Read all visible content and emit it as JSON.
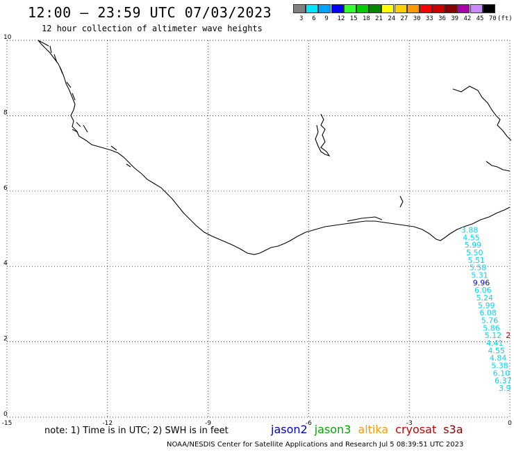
{
  "header": {
    "title": "12:00 – 23:59 UTC 07/03/2023",
    "subtitle": "12 hour collection of altimeter wave heights"
  },
  "color_scale": {
    "unit": "(ft)",
    "bins": [
      {
        "label": "3",
        "color": "#808080"
      },
      {
        "label": "6",
        "color": "#00e5ff"
      },
      {
        "label": "9",
        "color": "#00a2ff"
      },
      {
        "label": "12",
        "color": "#0000ff"
      },
      {
        "label": "15",
        "color": "#33ff33"
      },
      {
        "label": "18",
        "color": "#00cc00"
      },
      {
        "label": "21",
        "color": "#008800"
      },
      {
        "label": "24",
        "color": "#ffff00"
      },
      {
        "label": "27",
        "color": "#ffd000"
      },
      {
        "label": "30",
        "color": "#ff9900"
      },
      {
        "label": "33",
        "color": "#ff0000"
      },
      {
        "label": "36",
        "color": "#cc0000"
      },
      {
        "label": "39",
        "color": "#880000"
      },
      {
        "label": "42",
        "color": "#aa00aa"
      },
      {
        "label": "45",
        "color": "#cc88ff"
      },
      {
        "label": "70",
        "color": "#000000"
      }
    ]
  },
  "axes": {
    "x_ticks": [
      "-15",
      "-12",
      "-9",
      "-6",
      "-3",
      "0"
    ],
    "y_ticks": [
      "0",
      "2",
      "4",
      "6",
      "8",
      "10"
    ],
    "x_range": [
      -15,
      0
    ],
    "y_range": [
      0,
      10
    ]
  },
  "observations": [
    {
      "label": "3.88",
      "color": "#00d8f0",
      "lon": -1.2,
      "lat": 4.9
    },
    {
      "label": "4.55",
      "color": "#00d8f0",
      "lon": -1.15,
      "lat": 4.7
    },
    {
      "label": "5.99",
      "color": "#00d8f0",
      "lon": -1.1,
      "lat": 4.5
    },
    {
      "label": "5.50",
      "color": "#00d8f0",
      "lon": -1.05,
      "lat": 4.3
    },
    {
      "label": "5.51",
      "color": "#00d8f0",
      "lon": -1.0,
      "lat": 4.1
    },
    {
      "label": "5.58",
      "color": "#00d8f0",
      "lon": -0.95,
      "lat": 3.9
    },
    {
      "label": "5.31",
      "color": "#00d8f0",
      "lon": -0.9,
      "lat": 3.7
    },
    {
      "label": "9.96",
      "color": "#0000cc",
      "lon": -0.85,
      "lat": 3.5
    },
    {
      "label": "6.06",
      "color": "#00d8f0",
      "lon": -0.8,
      "lat": 3.3
    },
    {
      "label": "5.24",
      "color": "#00d8f0",
      "lon": -0.75,
      "lat": 3.1
    },
    {
      "label": "5.99",
      "color": "#00d8f0",
      "lon": -0.7,
      "lat": 2.9
    },
    {
      "label": "6.08",
      "color": "#00d8f0",
      "lon": -0.65,
      "lat": 2.7
    },
    {
      "label": "5.76",
      "color": "#00d8f0",
      "lon": -0.6,
      "lat": 2.5
    },
    {
      "label": "5.86",
      "color": "#00d8f0",
      "lon": -0.55,
      "lat": 2.3
    },
    {
      "label": "5.12",
      "color": "#00d8f0",
      "lon": -0.5,
      "lat": 2.1
    },
    {
      "label": "4.41",
      "color": "#00d8f0",
      "lon": -0.45,
      "lat": 1.9
    },
    {
      "label": "4.55",
      "color": "#00d8f0",
      "lon": -0.4,
      "lat": 1.7
    },
    {
      "label": "4.84",
      "color": "#00d8f0",
      "lon": -0.35,
      "lat": 1.5
    },
    {
      "label": "5.38",
      "color": "#00d8f0",
      "lon": -0.3,
      "lat": 1.3
    },
    {
      "label": "6.10",
      "color": "#00d8f0",
      "lon": -0.25,
      "lat": 1.1
    },
    {
      "label": "6.37",
      "color": "#00d8f0",
      "lon": -0.2,
      "lat": 0.9
    },
    {
      "label": "3.9",
      "color": "#00d8f0",
      "lon": -0.15,
      "lat": 0.7
    },
    {
      "label": "2",
      "color": "#cc0000",
      "lon": -0.05,
      "lat": 2.1
    }
  ],
  "footer": {
    "note": "note:  1) Time is in UTC;  2) SWH is in feet",
    "satellites": [
      {
        "name": "jason2",
        "color": "#0000cc"
      },
      {
        "name": "jason3",
        "color": "#00aa00"
      },
      {
        "name": "altika",
        "color": "#ff9900"
      },
      {
        "name": "cryosat",
        "color": "#cc0000"
      },
      {
        "name": "s3a",
        "color": "#880000"
      }
    ],
    "credit": "NOAA/NESDIS Center for Satellite Applications and Research    Jul  5 08:39:51 UTC 2023"
  }
}
